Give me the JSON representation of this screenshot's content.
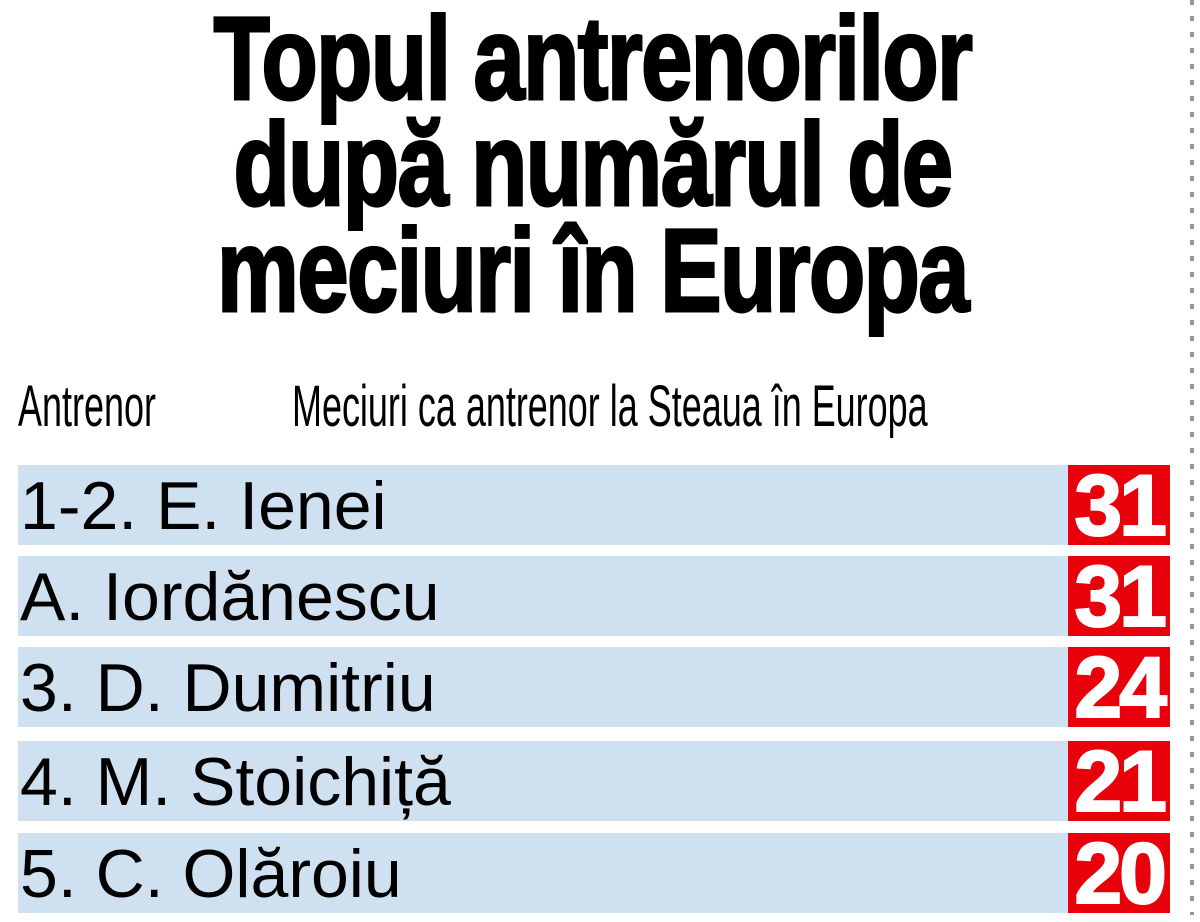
{
  "chart_data": {
    "type": "table",
    "title_lines": [
      "Topul antrenorilor",
      "după numărul de",
      "meciuri în Europa"
    ],
    "columns": [
      "Antrenor",
      "Meciuri ca antrenor la Steaua în Europa"
    ],
    "rows": [
      {
        "name": "1-2. E. Ienei",
        "value": 31
      },
      {
        "name": "A. Iordănescu",
        "value": 31
      },
      {
        "name": "3. D. Dumitriu",
        "value": 24
      },
      {
        "name": "4. M. Stoichiță",
        "value": 21
      },
      {
        "name": "5. C. Olăroiu",
        "value": 20
      }
    ],
    "colors": {
      "row_bg": "#cfe0f0",
      "value_bg": "#e8000b",
      "value_text": "#ffffff"
    }
  }
}
